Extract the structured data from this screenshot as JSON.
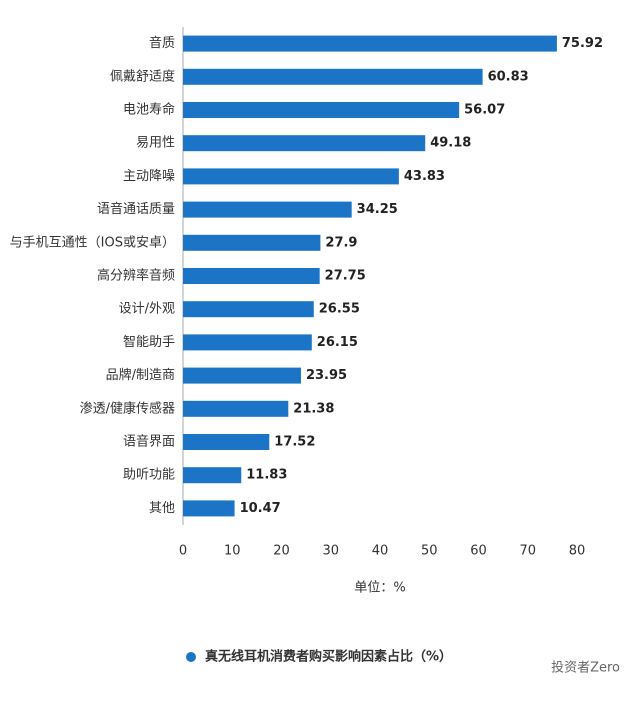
{
  "chart_data": {
    "type": "bar",
    "orientation": "horizontal",
    "categories": [
      "音质",
      "佩戴舒适度",
      "电池寿命",
      "易用性",
      "主动降噪",
      "语音通话质量",
      "与手机互通性（IOS或安卓）",
      "高分辨率音频",
      "设计/外观",
      "智能助手",
      "品牌/制造商",
      "渗透/健康传感器",
      "语音界面",
      "助听功能",
      "其他"
    ],
    "series": [
      {
        "name": "真无线耳机消费者购买影响因素占比（%）",
        "color": "#1b74c5",
        "values": [
          75.92,
          60.83,
          56.07,
          49.18,
          43.83,
          34.25,
          27.9,
          27.75,
          26.55,
          26.15,
          23.95,
          21.38,
          17.52,
          11.83,
          10.47
        ]
      }
    ],
    "xlim": [
      0,
      80
    ],
    "xticks": [
      0,
      10,
      20,
      30,
      40,
      50,
      60,
      70,
      80
    ],
    "xlabel": "单位：%",
    "grid": false,
    "legend": "bottom",
    "watermark": "投资者Zero"
  }
}
